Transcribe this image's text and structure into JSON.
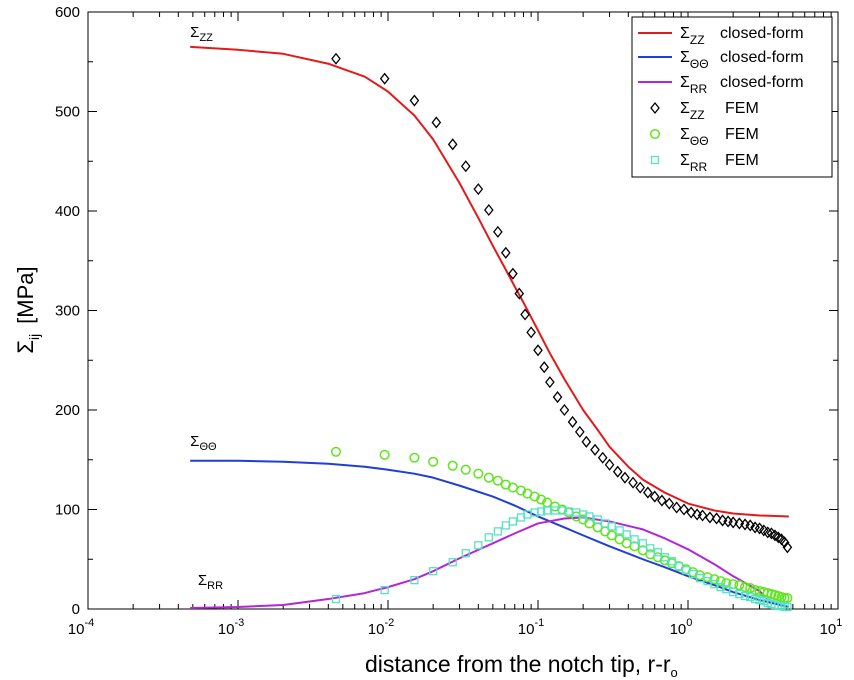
{
  "chart_data": {
    "type": "line",
    "xscale": "log",
    "xlim": [
      0.0001,
      10
    ],
    "ylim": [
      0,
      600
    ],
    "x_tick_labels": [
      {
        "base": "10",
        "exp": "-4"
      },
      {
        "base": "10",
        "exp": "-3"
      },
      {
        "base": "10",
        "exp": "-2"
      },
      {
        "base": "10",
        "exp": "-1"
      },
      {
        "base": "10",
        "exp": "0"
      },
      {
        "base": "10",
        "exp": "1"
      }
    ],
    "y_ticks": [
      "0",
      "100",
      "200",
      "300",
      "400",
      "500",
      "600"
    ],
    "xlabel": {
      "main": "distance from the notch tip, r-r",
      "sub": "o"
    },
    "ylabel": {
      "main": "Σ",
      "sub": "ij",
      "rest": "[MPa]"
    },
    "grid": false,
    "legend_position": "top-right",
    "annotations": [
      {
        "main": "Σ",
        "sub": "ZZ",
        "x": 0.00048,
        "y": 575
      },
      {
        "main": "Σ",
        "sub": "ΘΘ",
        "x": 0.00048,
        "y": 164
      },
      {
        "main": "Σ",
        "sub": "RR",
        "x": 0.00054,
        "y": 24
      }
    ],
    "series": [
      {
        "name": {
          "main": "Σ",
          "sub": "ZZ",
          "suffix": "closed-form"
        },
        "kind": "line",
        "color": "#e31a1c",
        "x": [
          0.00048,
          0.001,
          0.002,
          0.004,
          0.007,
          0.01,
          0.015,
          0.02,
          0.03,
          0.04,
          0.05,
          0.06,
          0.07,
          0.08,
          0.1,
          0.12,
          0.15,
          0.2,
          0.25,
          0.3,
          0.4,
          0.5,
          0.7,
          1.0,
          1.5,
          2.0,
          3.0,
          4.7
        ],
        "y": [
          565,
          562,
          558,
          548,
          535,
          520,
          496,
          472,
          428,
          393,
          365,
          343,
          324,
          308,
          280,
          257,
          231,
          200,
          180,
          163,
          143,
          130,
          117,
          106,
          99,
          96,
          94,
          93
        ]
      },
      {
        "name": {
          "main": "Σ",
          "sub": "ΘΘ",
          "suffix": "closed-form"
        },
        "kind": "line",
        "color": "#1f3fd6",
        "x": [
          0.00048,
          0.001,
          0.002,
          0.004,
          0.007,
          0.01,
          0.015,
          0.02,
          0.03,
          0.05,
          0.07,
          0.1,
          0.15,
          0.2,
          0.3,
          0.5,
          0.7,
          1.0,
          1.5,
          2.0,
          3.0,
          4.7
        ],
        "y": [
          149,
          149,
          148,
          146,
          143,
          140,
          136,
          132,
          124,
          113,
          104,
          93,
          82,
          74,
          63,
          50,
          42,
          33,
          24,
          17,
          9,
          2
        ]
      },
      {
        "name": {
          "main": "Σ",
          "sub": "RR",
          "suffix": "closed-form"
        },
        "kind": "line",
        "color": "#b326d6",
        "x": [
          0.00048,
          0.001,
          0.002,
          0.004,
          0.007,
          0.01,
          0.015,
          0.02,
          0.03,
          0.05,
          0.07,
          0.1,
          0.15,
          0.2,
          0.3,
          0.5,
          0.7,
          1.0,
          1.5,
          2.0,
          3.0,
          3.5
        ],
        "y": [
          1,
          2,
          4,
          10,
          16,
          22,
          30,
          38,
          51,
          66,
          76,
          86,
          91,
          92,
          88,
          80,
          71,
          60,
          45,
          33,
          18,
          8
        ]
      },
      {
        "name": {
          "main": "Σ",
          "sub": "ZZ",
          "suffix": "FEM"
        },
        "kind": "marker",
        "marker": "diamond",
        "color": "#000000",
        "x": [
          0.0045,
          0.0095,
          0.015,
          0.021,
          0.027,
          0.033,
          0.04,
          0.047,
          0.054,
          0.061,
          0.068,
          0.075,
          0.082,
          0.09,
          0.1,
          0.11,
          0.12,
          0.135,
          0.15,
          0.17,
          0.19,
          0.21,
          0.24,
          0.27,
          0.3,
          0.34,
          0.38,
          0.43,
          0.48,
          0.54,
          0.6,
          0.67,
          0.75,
          0.84,
          0.94,
          1.05,
          1.15,
          1.25,
          1.4,
          1.55,
          1.7,
          1.85,
          2.0,
          2.2,
          2.4,
          2.6,
          2.8,
          3.0,
          3.2,
          3.4,
          3.6,
          3.8,
          4.0,
          4.2,
          4.4,
          4.6
        ],
        "y": [
          553,
          533,
          511,
          489,
          467,
          445,
          422,
          401,
          379,
          358,
          337,
          317,
          296,
          278,
          260,
          243,
          228,
          213,
          200,
          188,
          178,
          168,
          160,
          152,
          145,
          138,
          132,
          127,
          122,
          117,
          113,
          109,
          106,
          102,
          100,
          97,
          95,
          94,
          92,
          91,
          89,
          88,
          87,
          86,
          85,
          84,
          82,
          81,
          79,
          77,
          76,
          74,
          72,
          70,
          67,
          62
        ]
      },
      {
        "name": {
          "main": "Σ",
          "sub": "ΘΘ",
          "suffix": "FEM"
        },
        "kind": "marker",
        "marker": "circle",
        "color": "#5ee61c",
        "x": [
          0.0045,
          0.0095,
          0.015,
          0.02,
          0.027,
          0.033,
          0.04,
          0.047,
          0.054,
          0.061,
          0.068,
          0.077,
          0.085,
          0.095,
          0.105,
          0.115,
          0.13,
          0.145,
          0.16,
          0.18,
          0.2,
          0.22,
          0.25,
          0.28,
          0.31,
          0.35,
          0.39,
          0.44,
          0.5,
          0.56,
          0.63,
          0.7,
          0.78,
          0.87,
          0.97,
          1.08,
          1.2,
          1.35,
          1.5,
          1.65,
          1.8,
          2.0,
          2.2,
          2.4,
          2.6,
          2.8,
          3.0,
          3.2,
          3.4,
          3.6,
          3.8,
          4.0,
          4.2,
          4.4,
          4.6
        ],
        "y": [
          158,
          155,
          152,
          148,
          144,
          140,
          136,
          132,
          129,
          125,
          122,
          119,
          116,
          113,
          110,
          107,
          103,
          100,
          97,
          93,
          90,
          86,
          82,
          78,
          74,
          70,
          66,
          63,
          59,
          55,
          52,
          49,
          46,
          43,
          40,
          37,
          34,
          32,
          30,
          28,
          26,
          25,
          24,
          22,
          21,
          19,
          18,
          17,
          16,
          15,
          14,
          13,
          12,
          11,
          11
        ]
      },
      {
        "name": {
          "main": "Σ",
          "sub": "RR",
          "suffix": "FEM"
        },
        "kind": "marker",
        "marker": "square",
        "color": "#56e3c1",
        "x": [
          0.0045,
          0.0095,
          0.015,
          0.02,
          0.027,
          0.033,
          0.04,
          0.047,
          0.054,
          0.061,
          0.068,
          0.077,
          0.085,
          0.095,
          0.105,
          0.115,
          0.13,
          0.145,
          0.16,
          0.18,
          0.2,
          0.22,
          0.25,
          0.28,
          0.31,
          0.35,
          0.39,
          0.44,
          0.5,
          0.56,
          0.63,
          0.7,
          0.78,
          0.87,
          0.97,
          1.08,
          1.2,
          1.35,
          1.5,
          1.65,
          1.8,
          2.0,
          2.2,
          2.4,
          2.6,
          2.8,
          3.0,
          3.2,
          3.4,
          3.6,
          3.8,
          4.0,
          4.2,
          4.4,
          4.6
        ],
        "y": [
          10,
          19,
          29,
          38,
          47,
          56,
          64,
          72,
          78,
          84,
          88,
          92,
          95,
          97,
          98,
          99,
          99,
          99,
          98,
          97,
          95,
          93,
          90,
          86,
          83,
          79,
          75,
          70,
          66,
          61,
          57,
          52,
          48,
          43,
          39,
          35,
          31,
          28,
          25,
          22,
          20,
          17,
          15,
          13,
          12,
          10,
          9,
          8,
          6,
          5,
          4,
          3,
          3,
          2,
          2
        ]
      }
    ]
  }
}
